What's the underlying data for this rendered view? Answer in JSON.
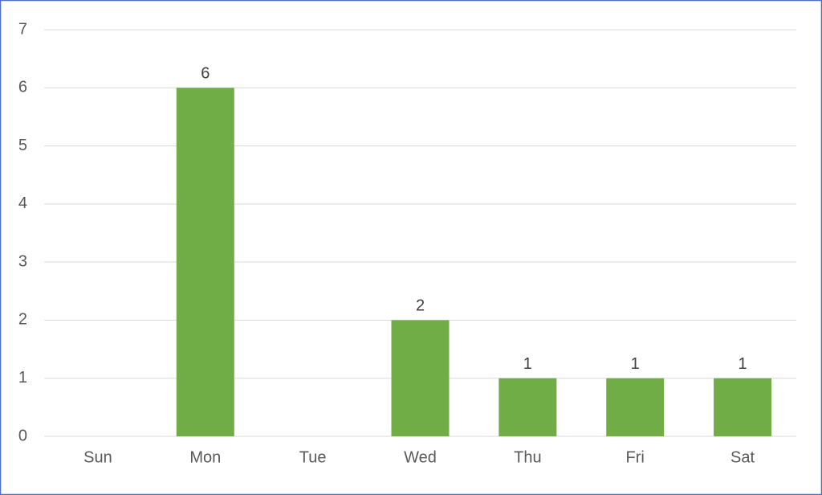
{
  "chart_data": {
    "type": "bar",
    "categories": [
      "Sun",
      "Mon",
      "Tue",
      "Wed",
      "Thu",
      "Fri",
      "Sat"
    ],
    "values": [
      null,
      6,
      null,
      2,
      1,
      1,
      1
    ],
    "color": "#70ad47",
    "ylim": [
      0,
      7
    ],
    "yticks": [
      0,
      1,
      2,
      3,
      4,
      5,
      6,
      7
    ],
    "grid": true
  }
}
